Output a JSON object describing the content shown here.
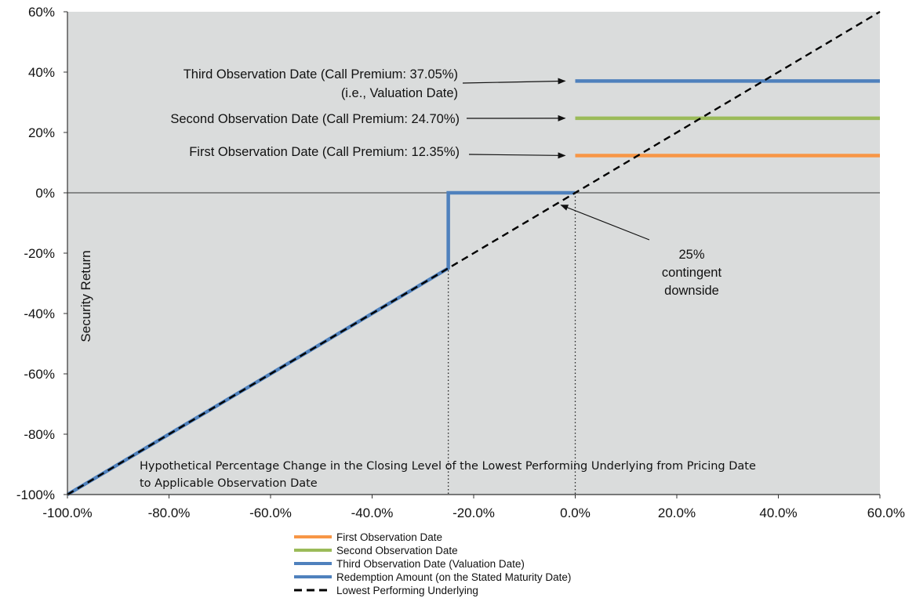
{
  "chart_data": {
    "type": "line",
    "title": "",
    "xlabel_lines": [
      "Hypothetical Percentage Change in the Closing Level of the Lowest Performing Underlying from Pricing Date",
      "to Applicable Observation Date"
    ],
    "ylabel": "Security Return",
    "xlim": [
      -100,
      60
    ],
    "ylim": [
      -100,
      60
    ],
    "x_ticks": [
      -100,
      -80,
      -60,
      -40,
      -20,
      0,
      20,
      40,
      60
    ],
    "x_tick_labels": [
      "-100.0%",
      "-80.0%",
      "-60.0%",
      "-40.0%",
      "-20.0%",
      "0.0%",
      "20.0%",
      "40.0%",
      "60.0%"
    ],
    "y_ticks": [
      60,
      40,
      20,
      0,
      -20,
      -40,
      -60,
      -80,
      -100
    ],
    "y_tick_labels": [
      "60%",
      "40%",
      "20%",
      "0%",
      "-20%",
      "-40%",
      "-60%",
      "-80%",
      "-100%"
    ],
    "series": [
      {
        "name": "First Observation Date",
        "color": "#f79646",
        "style": "solid",
        "x": [
          0,
          60
        ],
        "y": [
          12.35,
          12.35
        ]
      },
      {
        "name": "Second Observation Date",
        "color": "#9bbb59",
        "style": "solid",
        "x": [
          0,
          60
        ],
        "y": [
          24.7,
          24.7
        ]
      },
      {
        "name": "Third Observation Date (Valuation Date)",
        "color": "#4f81bd",
        "style": "solid",
        "x": [
          0,
          60
        ],
        "y": [
          37.05,
          37.05
        ]
      },
      {
        "name": "Redemption Amount (on the Stated Maturity Date)",
        "color": "#4f81bd",
        "style": "solid",
        "x": [
          -100,
          -25,
          -25,
          0
        ],
        "y": [
          -100,
          -25,
          0,
          0
        ]
      },
      {
        "name": "Lowest Performing Underlying",
        "color": "#000000",
        "style": "dashed",
        "x": [
          -100,
          60
        ],
        "y": [
          -100,
          60
        ]
      }
    ],
    "reference_lines": [
      {
        "type": "vertical",
        "x": -25,
        "style": "dotted"
      },
      {
        "type": "vertical",
        "x": 0,
        "style": "dotted"
      }
    ],
    "annotations": [
      {
        "lines": [
          "Third Observation Date (Call Premium: 37.05%)",
          "(i.e., Valuation Date)"
        ],
        "points_to": {
          "x": -2,
          "y": 37.05
        }
      },
      {
        "lines": [
          "Second Observation Date (Call Premium: 24.70%)"
        ],
        "points_to": {
          "x": -2,
          "y": 24.7
        }
      },
      {
        "lines": [
          "First Observation Date (Call Premium: 12.35%)"
        ],
        "points_to": {
          "x": -2,
          "y": 12.35
        }
      },
      {
        "lines": [
          "25%",
          "contingent",
          "downside"
        ],
        "points_to": {
          "x": -2.5,
          "y": -2.5
        }
      }
    ],
    "grid": false,
    "legend_position": "bottom-center",
    "colors": {
      "plot_background": "#dadcdc",
      "orange": "#f79646",
      "green": "#9bbb59",
      "blue": "#4f81bd"
    }
  }
}
